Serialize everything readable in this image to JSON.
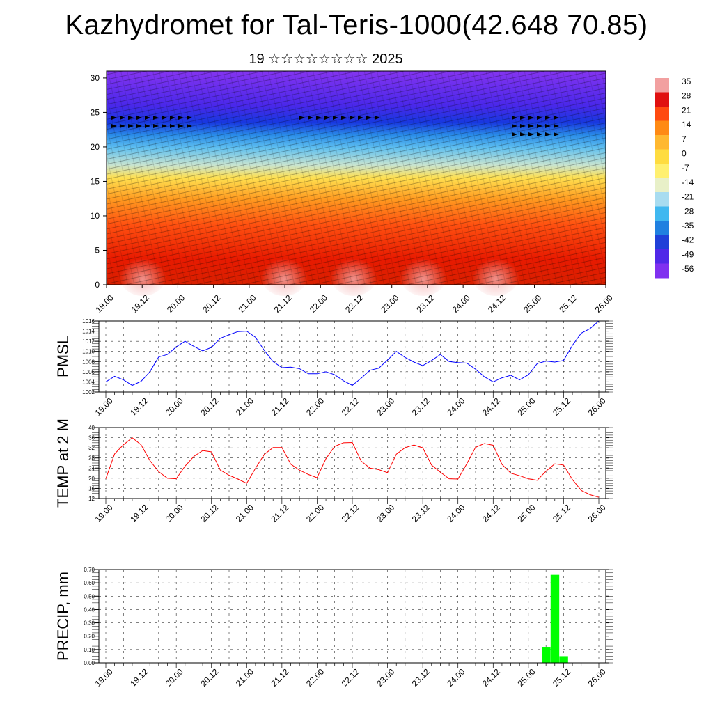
{
  "header": {
    "title": "Kazhydromet for Tal-Teris-1000(42.648 70.85)",
    "subtitle": "19 ☆☆☆☆☆☆☆☆ 2025"
  },
  "time_labels": [
    "19.00",
    "19.12",
    "20.00",
    "20.12",
    "21.00",
    "21.12",
    "22.00",
    "22.12",
    "23.00",
    "23.12",
    "24.00",
    "24.12",
    "25.00",
    "25.12",
    "26.00"
  ],
  "chart_data": [
    {
      "type": "heatmap",
      "description_fields": "temperature cross-section by height with wind barbs",
      "x_labels": [
        "19.00",
        "19.12",
        "20.00",
        "20.12",
        "21.00",
        "21.12",
        "22.00",
        "22.12",
        "23.00",
        "23.12",
        "24.00",
        "24.12",
        "25.00",
        "25.12",
        "26.00"
      ],
      "y_ticks": [
        0,
        5,
        10,
        15,
        20,
        25,
        30
      ],
      "ylim": [
        0,
        31
      ],
      "colorbar": {
        "labels": [
          "35",
          "28",
          "21",
          "14",
          "7",
          "0",
          "-7",
          "-14",
          "-21",
          "-28",
          "-35",
          "-42",
          "-49",
          "-56"
        ],
        "colors": [
          "#f2a0a0",
          "#e01010",
          "#ff4a10",
          "#ff8a14",
          "#ffb830",
          "#ffdc40",
          "#fff070",
          "#e8f0c8",
          "#a8dcf0",
          "#40b8f0",
          "#2080e0",
          "#2040d8",
          "#5028e8",
          "#8030f0"
        ]
      }
    },
    {
      "type": "line",
      "ylabel": "PMSL",
      "ylim": [
        1002,
        1016
      ],
      "y_ticks": [
        1002,
        1004,
        1006,
        1008,
        1010,
        1012,
        1014,
        1016
      ],
      "color": "#0000ff",
      "values": [
        1004,
        1005.1,
        1004.4,
        1003.3,
        1004.1,
        1006,
        1008.9,
        1009.4,
        1010.9,
        1012,
        1011,
        1010.1,
        1010.8,
        1012.6,
        1013.3,
        1013.9,
        1014,
        1012.8,
        1010.2,
        1008,
        1006.8,
        1006.9,
        1006.6,
        1005.6,
        1005.6,
        1006,
        1005.4,
        1004.2,
        1003.3,
        1004.7,
        1006.3,
        1006.7,
        1008.3,
        1010,
        1008.8,
        1007.9,
        1007.2,
        1008.2,
        1009.4,
        1008,
        1007.8,
        1007.7,
        1006.5,
        1005,
        1004,
        1004.8,
        1005.3,
        1004.4,
        1005.4,
        1007.6,
        1008.1,
        1007.9,
        1008.2,
        1011.2,
        1013.6,
        1014.5,
        1016
      ]
    },
    {
      "type": "line",
      "ylabel": "TEMP at 2 M",
      "ylim": [
        12,
        40
      ],
      "y_ticks": [
        12,
        16,
        20,
        24,
        28,
        32,
        36,
        40
      ],
      "color": "#ff0000",
      "values": [
        19.8,
        29.6,
        33.2,
        36,
        33.2,
        27,
        22.6,
        20,
        19.8,
        24.8,
        28.6,
        30.9,
        30.4,
        23.2,
        21.2,
        19.7,
        18,
        23.9,
        29.4,
        32.1,
        32.1,
        25.6,
        23.2,
        21.5,
        20.2,
        27.7,
        32.6,
        34,
        34.1,
        26.8,
        24,
        23.4,
        22.2,
        29.5,
        32.1,
        33.1,
        32,
        25.2,
        22.4,
        19.8,
        19.7,
        25.7,
        32.2,
        33.7,
        33,
        25.5,
        22,
        21,
        19.8,
        19.2,
        22.8,
        25.7,
        25.2,
        19.5,
        15.2,
        13.5,
        12.5
      ]
    },
    {
      "type": "bar",
      "ylabel": "PRECIP, mm",
      "ylim": [
        0,
        0.7
      ],
      "y_ticks": [
        "0.00",
        "0.10",
        "0.20",
        "0.30",
        "0.40",
        "0.50",
        "0.60",
        "0.70"
      ],
      "color": "#00ff00",
      "bars": [
        {
          "time_index": 50,
          "value": 0.12
        },
        {
          "time_index": 51,
          "value": 0.66
        },
        {
          "time_index": 52,
          "value": 0.05
        }
      ]
    }
  ]
}
